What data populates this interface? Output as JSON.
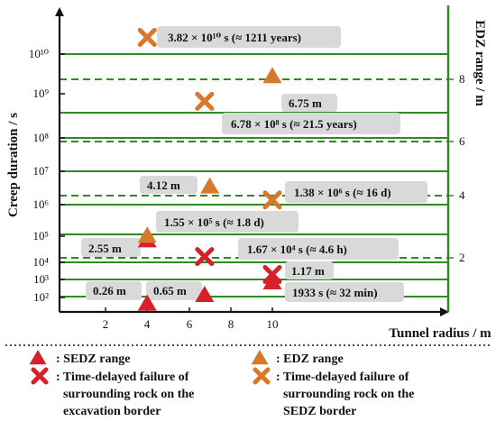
{
  "colors": {
    "grid_green": "#2e8b22",
    "sedz_red": "#d8202a",
    "edz_orange": "#d8782a",
    "label_box": "#d9d9d9"
  },
  "chart_data": {
    "type": "scatter",
    "title": "",
    "xlabel": "Tunnel radius / m",
    "ylabel": "Creep duration / s",
    "y2label": "EDZ range / m",
    "x_ticks": [
      "2",
      "4",
      "6",
      "8",
      "10"
    ],
    "y_ticks": [
      "10²",
      "10³",
      "10⁴",
      "10⁵",
      "10⁶",
      "10⁷",
      "10⁸",
      "10⁹",
      "10¹⁰"
    ],
    "y2_ticks": [
      "2",
      "4",
      "6",
      "8"
    ],
    "y_scale": "log",
    "markers": [
      {
        "series": "sedz",
        "x": 4,
        "log10_t": 1.67
      },
      {
        "series": "sedz",
        "x": 6.75,
        "log10_t": 2.15
      },
      {
        "series": "sedz",
        "x": 10,
        "log10_t": 2.85
      },
      {
        "series": "sedz",
        "x": 4,
        "log10_t": 4.85
      },
      {
        "series": "edz",
        "x": 4,
        "log10_t": 5.02
      },
      {
        "series": "edz",
        "x": 7,
        "log10_t": 6.55
      },
      {
        "series": "edz",
        "x": 10,
        "log10_t": 9.45
      },
      {
        "series": "fail_exc",
        "x": 10,
        "log10_t": 3.29
      },
      {
        "series": "fail_exc",
        "x": 6.75,
        "log10_t": 4.22
      },
      {
        "series": "fail_sedz",
        "x": 10,
        "log10_t": 6.14
      },
      {
        "series": "fail_sedz",
        "x": 6.75,
        "log10_t": 8.83
      },
      {
        "series": "fail_sedz",
        "x": 4,
        "log10_t": 10.58
      }
    ],
    "annotations": [
      "3.82 × 10¹⁰ s (≈ 1211 years)",
      "6.75 m",
      "6.78 × 10⁸ s (≈ 21.5 years)",
      "4.12 m",
      "1.38 × 10⁶ s (≈ 16 d)",
      "1.55 × 10⁵ s (≈ 1.8 d)",
      "2.55 m",
      "1.67 × 10⁴ s (≈ 4.6 h)",
      "1.17 m",
      "0.26 m",
      "0.65 m",
      "1933 s (≈ 32 min)"
    ],
    "legend": {
      "sedz": ": SEDZ range",
      "edz": ": EDZ range",
      "fail_exc": [
        ": Time-delayed failure of",
        "surrounding rock on the",
        "excavation border"
      ],
      "fail_sedz": [
        ": Time-delayed failure of",
        "surrounding rock on the",
        "SEDZ border"
      ]
    }
  }
}
